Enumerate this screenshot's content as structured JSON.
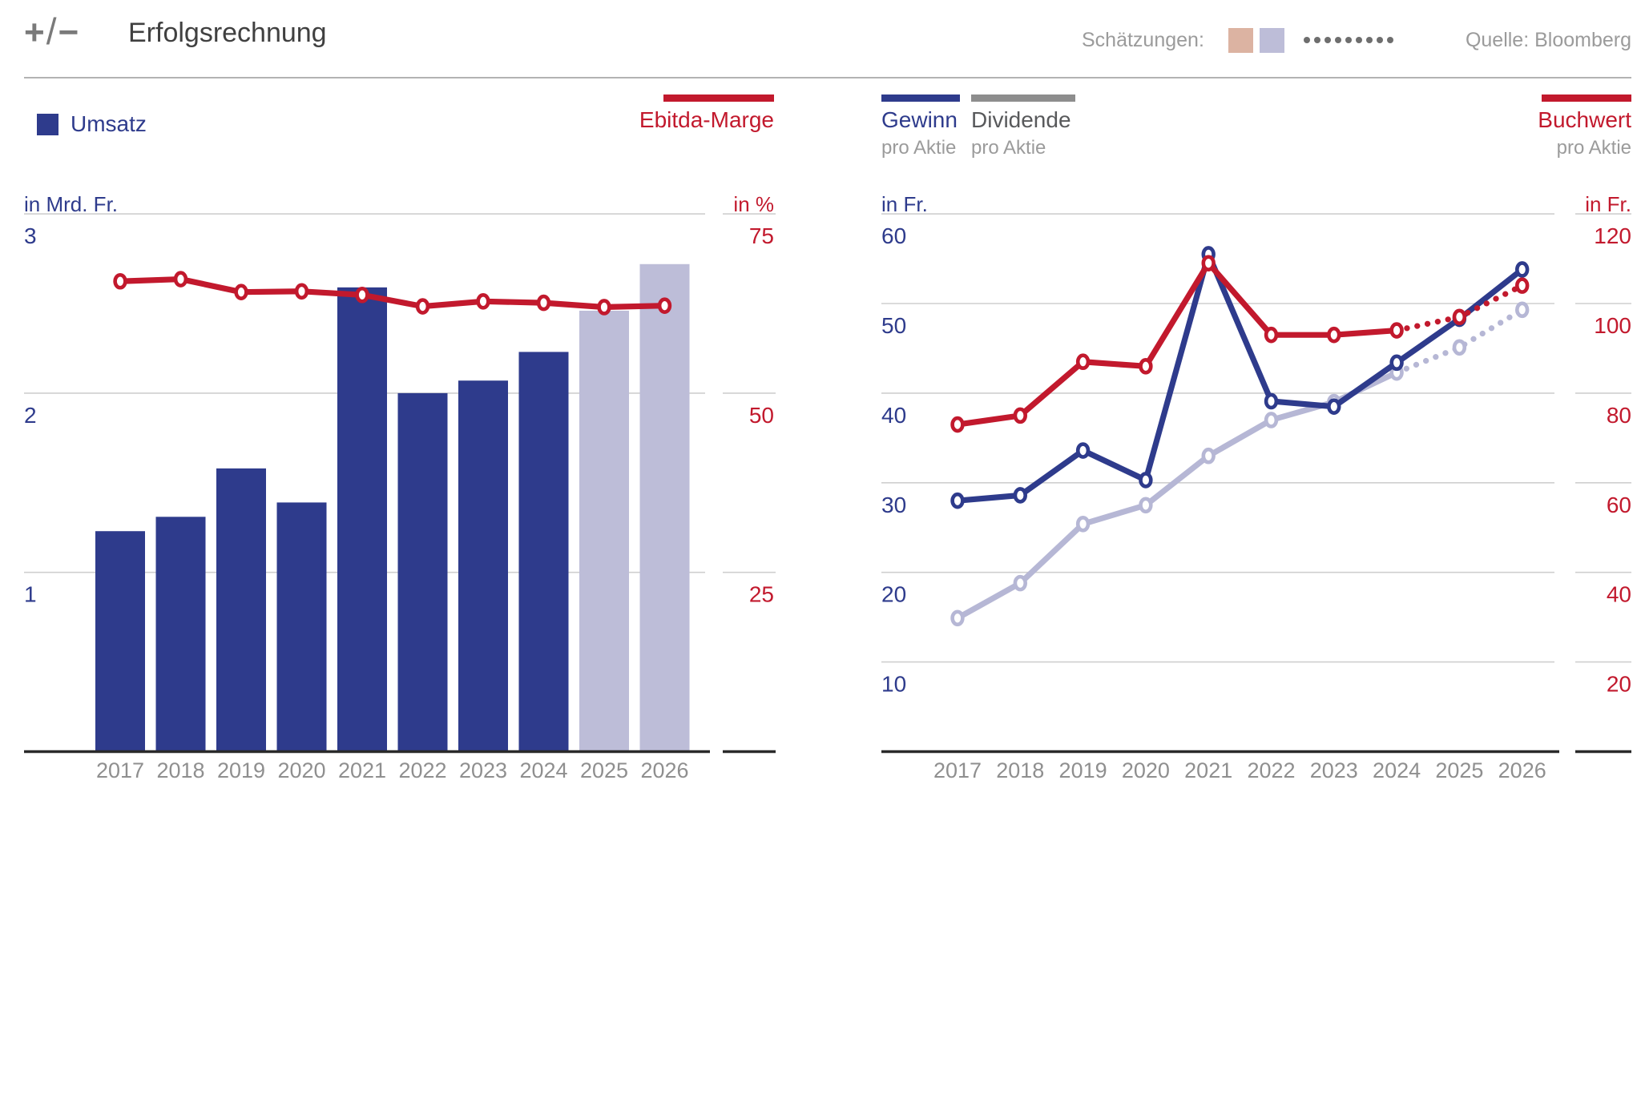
{
  "header": {
    "logo_plus": "+",
    "logo_slash": "/",
    "logo_minus": "−",
    "title": "Erfolgsrechnung",
    "estimates_label": "Schätzungen:",
    "estimate_dots": 9,
    "source": "Quelle: Bloomberg"
  },
  "colors": {
    "blue": "#2e3b8c",
    "lavender": "#bdbdd8",
    "lavender_line": "#b6b7d5",
    "red": "#c2192d",
    "tan": "#dcb3a2",
    "gray_text": "#9b9b9b",
    "dividende_text": "#58595b",
    "year_text": "#8f8f8f",
    "legend_gray": "#8d8d8d",
    "grid": "#cfcfcf",
    "axis": "#2a2a2a",
    "dot": "#6e6e6e"
  },
  "chart_data": [
    {
      "type": "bar",
      "title": "Umsatz und Ebitda-Marge",
      "categories": [
        "2017",
        "2018",
        "2019",
        "2020",
        "2021",
        "2022",
        "2023",
        "2024",
        "2025",
        "2026"
      ],
      "estimate_start_index": 8,
      "left_axis": {
        "unit": "in Mrd. Fr.",
        "ticks": [
          3,
          2,
          1
        ]
      },
      "right_axis": {
        "unit": "in %",
        "ticks": [
          75,
          50,
          25
        ]
      },
      "legend": {
        "bar_label": "Umsatz",
        "line_label": "Ebitda-Marge"
      },
      "series": [
        {
          "name": "Umsatz",
          "type": "bar",
          "axis": "left",
          "color_key": "blue",
          "estimate_color_key": "lavender",
          "values": [
            1.23,
            1.31,
            1.58,
            1.39,
            2.59,
            2.0,
            2.07,
            2.23,
            2.46,
            2.72
          ]
        },
        {
          "name": "Ebitda-Marge",
          "type": "line",
          "axis": "right",
          "color_key": "red",
          "dotted_from_index": null,
          "values": [
            65.6,
            65.9,
            64.1,
            64.2,
            63.7,
            62.1,
            62.8,
            62.6,
            62.0,
            62.2
          ]
        }
      ]
    },
    {
      "type": "line",
      "title": "Gewinn, Dividende und Buchwert pro Aktie",
      "categories": [
        "2017",
        "2018",
        "2019",
        "2020",
        "2021",
        "2022",
        "2023",
        "2024",
        "2025",
        "2026"
      ],
      "estimate_start_index": 8,
      "left_axis": {
        "unit": "in Fr.",
        "ticks": [
          60,
          50,
          40,
          30,
          20,
          10
        ]
      },
      "right_axis": {
        "unit": "in Fr.",
        "ticks": [
          120,
          100,
          80,
          60,
          40,
          20
        ]
      },
      "legend": {
        "items": [
          {
            "label": "Gewinn",
            "sub": "pro Aktie"
          },
          {
            "label": "Dividende",
            "sub": "pro Aktie"
          },
          {
            "label": "Buchwert",
            "sub": "pro Aktie"
          }
        ]
      },
      "series": [
        {
          "name": "Dividende pro Aktie",
          "type": "line",
          "axis": "left",
          "color_key": "lavender_line",
          "dotted_from_index": 7,
          "values": [
            14.9,
            18.8,
            25.4,
            27.5,
            33.0,
            37.0,
            39.0,
            42.3,
            45.1,
            49.3
          ]
        },
        {
          "name": "Gewinn pro Aktie",
          "type": "line",
          "axis": "left",
          "color_key": "blue",
          "dotted_from_index": null,
          "values": [
            28.0,
            28.6,
            33.6,
            30.3,
            55.5,
            39.1,
            38.5,
            43.4,
            48.3,
            53.8
          ]
        },
        {
          "name": "Buchwert pro Aktie",
          "type": "line",
          "axis": "right",
          "color_key": "red",
          "dotted_from_index": 7,
          "values": [
            73,
            75,
            87,
            86,
            109,
            93,
            93,
            94,
            97,
            104
          ]
        }
      ]
    }
  ]
}
